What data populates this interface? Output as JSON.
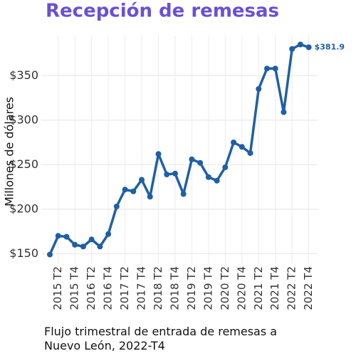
{
  "chart_data": {
    "type": "line",
    "title": "Recepción de remesas",
    "y_label": "Millones de dólares",
    "caption": "Flujo trimestral de entrada de remesas a Nuevo León, 2022-T4",
    "categories": [
      null,
      "2015 T2",
      null,
      "2015 T4",
      null,
      "2016 T2",
      null,
      "2016 T4",
      null,
      "2017 T2",
      null,
      "2017 T4",
      null,
      "2018 T2",
      null,
      "2018 T4",
      null,
      "2019 T2",
      null,
      "2019 T4",
      null,
      "2020 T2",
      null,
      "2020 T4",
      null,
      "2021 T2",
      null,
      "2021 T4",
      null,
      "2022 T2",
      null,
      "2022 T4"
    ],
    "series": [
      {
        "name": "Remesas",
        "color": "#1f5fa8",
        "values": [
          149,
          170,
          169,
          160,
          158,
          166,
          158,
          172,
          203,
          222,
          220,
          233,
          214,
          262,
          239,
          240,
          217,
          256,
          252,
          236,
          232,
          247,
          275,
          270,
          263,
          335,
          358,
          358,
          309,
          380,
          385,
          381.9
        ],
        "value_labels": [
          null,
          null,
          null,
          null,
          null,
          null,
          null,
          null,
          null,
          null,
          null,
          null,
          null,
          null,
          null,
          null,
          null,
          null,
          null,
          null,
          null,
          null,
          null,
          null,
          null,
          null,
          null,
          null,
          null,
          null,
          null,
          "$381.9"
        ]
      }
    ],
    "ylim": [
      139,
      395
    ],
    "yticks": [
      {
        "value": 150,
        "label": "$150"
      },
      {
        "value": 200,
        "label": "$200"
      },
      {
        "value": 250,
        "label": "$250"
      },
      {
        "value": 300,
        "label": "$300"
      },
      {
        "value": 350,
        "label": "$350"
      }
    ],
    "grid": true
  }
}
